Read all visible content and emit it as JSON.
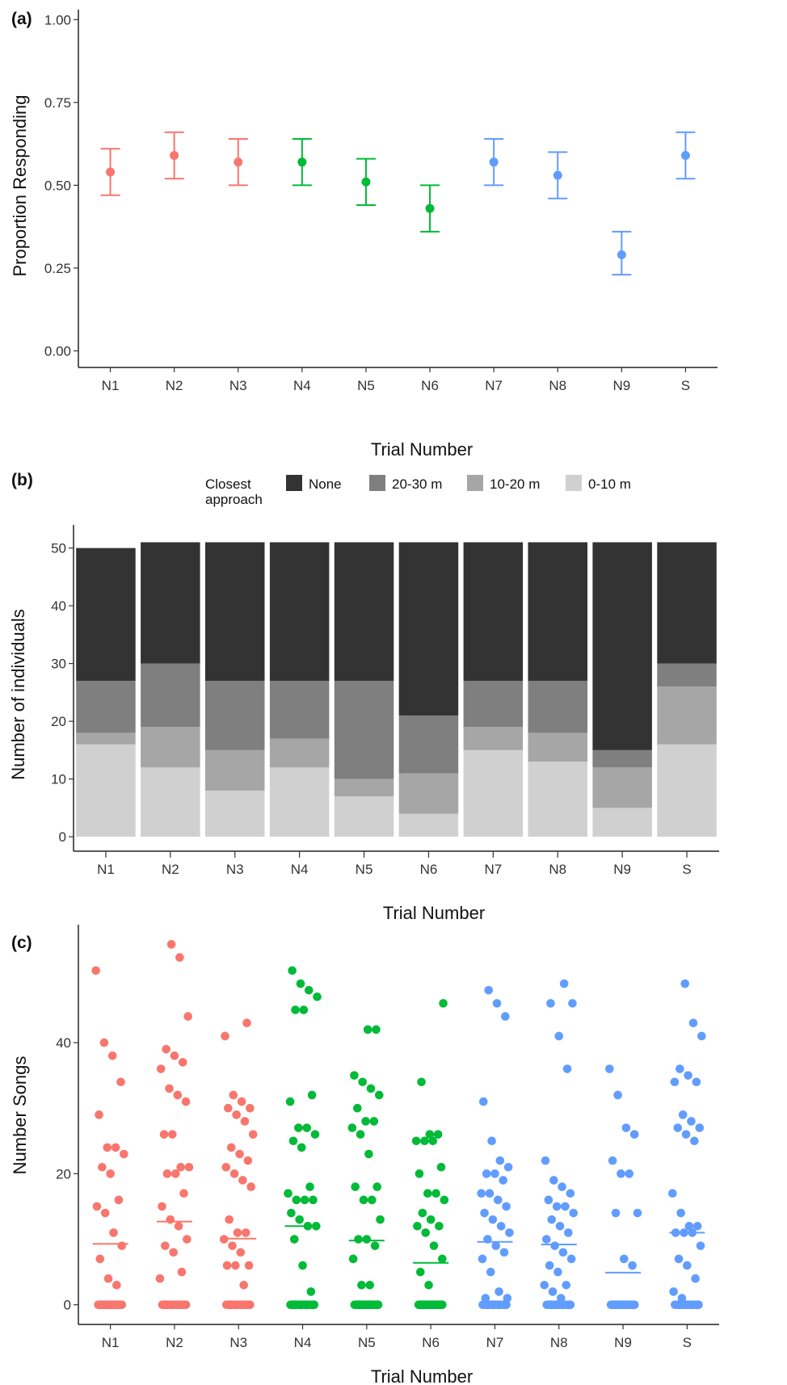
{
  "chart_data": [
    {
      "panel": "(a)",
      "type": "scatter",
      "categories": [
        "N1",
        "N2",
        "N3",
        "N4",
        "N5",
        "N6",
        "N7",
        "N8",
        "N9",
        "S"
      ],
      "values": [
        0.54,
        0.59,
        0.57,
        0.57,
        0.51,
        0.43,
        0.57,
        0.53,
        0.29,
        0.59
      ],
      "lower": [
        0.47,
        0.52,
        0.5,
        0.5,
        0.44,
        0.36,
        0.5,
        0.46,
        0.23,
        0.52
      ],
      "upper": [
        0.61,
        0.66,
        0.64,
        0.64,
        0.58,
        0.5,
        0.64,
        0.6,
        0.36,
        0.66
      ],
      "colors": [
        "#f8766d",
        "#f8766d",
        "#f8766d",
        "#00ba38",
        "#00ba38",
        "#00ba38",
        "#619cff",
        "#619cff",
        "#619cff",
        "#619cff"
      ],
      "xlabel": "Trial Number",
      "ylabel": "Proportion Responding",
      "ylim": [
        0,
        1
      ],
      "yticks": [
        "0.00",
        "0.25",
        "0.50",
        "0.75",
        "1.00"
      ],
      "grid": false
    },
    {
      "panel": "(b)",
      "type": "bar",
      "stacked": true,
      "categories": [
        "N1",
        "N2",
        "N3",
        "N4",
        "N5",
        "N6",
        "N7",
        "N8",
        "N9",
        "S"
      ],
      "legend_title": "Closest\napproach",
      "legend_position": "top",
      "series": [
        {
          "name": "None",
          "color": "#333333",
          "values": [
            23,
            21,
            24,
            24,
            24,
            30,
            24,
            24,
            36,
            21
          ]
        },
        {
          "name": "20-30 m",
          "color": "#7f7f7f",
          "values": [
            9,
            11,
            12,
            10,
            17,
            10,
            8,
            9,
            3,
            4
          ]
        },
        {
          "name": "10-20 m",
          "color": "#a6a6a6",
          "values": [
            2,
            7,
            7,
            5,
            3,
            7,
            4,
            5,
            7,
            10
          ]
        },
        {
          "name": "0-10 m",
          "color": "#d0d0d0",
          "values": [
            16,
            12,
            8,
            12,
            7,
            4,
            15,
            13,
            5,
            16
          ]
        }
      ],
      "xlabel": "Trial Number",
      "ylabel": "Number of individuals",
      "ylim": [
        0,
        52
      ],
      "yticks": [
        "0",
        "10",
        "20",
        "30",
        "40",
        "50"
      ],
      "grid": false
    },
    {
      "panel": "(c)",
      "type": "scatter",
      "jitter": true,
      "categories": [
        "N1",
        "N2",
        "N3",
        "N4",
        "N5",
        "N6",
        "N7",
        "N8",
        "N9",
        "S"
      ],
      "colors": [
        "#f8766d",
        "#f8766d",
        "#f8766d",
        "#00ba38",
        "#00ba38",
        "#00ba38",
        "#619cff",
        "#619cff",
        "#619cff",
        "#619cff"
      ],
      "means": [
        9.3,
        12.7,
        10.1,
        12.0,
        9.8,
        6.4,
        9.6,
        9.2,
        4.9,
        11.0
      ],
      "points": [
        [
          51,
          40,
          38,
          34,
          29,
          24,
          24,
          23,
          21,
          20,
          16,
          15,
          14,
          11,
          9,
          7,
          4,
          3,
          0,
          0,
          0,
          0,
          0,
          0,
          0,
          0,
          0,
          0,
          0,
          0,
          0,
          0,
          0,
          0,
          0,
          0,
          0,
          0,
          0,
          0,
          0,
          0,
          0,
          0,
          0,
          0,
          0,
          0,
          0,
          0
        ],
        [
          55,
          53,
          44,
          39,
          38,
          37,
          36,
          33,
          32,
          31,
          26,
          26,
          21,
          21,
          20,
          20,
          17,
          15,
          13,
          12,
          10,
          9,
          8,
          5,
          4,
          0,
          0,
          0,
          0,
          0,
          0,
          0,
          0,
          0,
          0,
          0,
          0,
          0,
          0,
          0,
          0,
          0,
          0,
          0,
          0,
          0,
          0,
          0,
          0,
          0,
          0
        ],
        [
          43,
          41,
          32,
          31,
          30,
          30,
          29,
          28,
          26,
          24,
          23,
          22,
          21,
          20,
          19,
          18,
          13,
          11,
          11,
          10,
          9,
          8,
          6,
          6,
          6,
          3,
          0,
          0,
          0,
          0,
          0,
          0,
          0,
          0,
          0,
          0,
          0,
          0,
          0,
          0,
          0,
          0,
          0,
          0,
          0,
          0,
          0,
          0,
          0,
          0,
          0
        ],
        [
          51,
          49,
          48,
          47,
          45,
          45,
          32,
          31,
          27,
          27,
          26,
          25,
          24,
          18,
          17,
          16,
          16,
          16,
          14,
          13,
          12,
          12,
          10,
          6,
          2,
          0,
          0,
          0,
          0,
          0,
          0,
          0,
          0,
          0,
          0,
          0,
          0,
          0,
          0,
          0,
          0,
          0,
          0,
          0,
          0,
          0,
          0,
          0,
          0,
          0,
          0
        ],
        [
          42,
          42,
          35,
          34,
          33,
          32,
          30,
          28,
          28,
          27,
          26,
          23,
          18,
          18,
          16,
          16,
          13,
          10,
          10,
          9,
          7,
          3,
          3,
          0,
          0,
          0,
          0,
          0,
          0,
          0,
          0,
          0,
          0,
          0,
          0,
          0,
          0,
          0,
          0,
          0,
          0,
          0,
          0,
          0,
          0,
          0,
          0,
          0,
          0,
          0,
          0
        ],
        [
          46,
          34,
          26,
          26,
          25,
          25,
          25,
          21,
          20,
          17,
          17,
          16,
          14,
          13,
          12,
          12,
          11,
          9,
          7,
          5,
          3,
          0,
          0,
          0,
          0,
          0,
          0,
          0,
          0,
          0,
          0,
          0,
          0,
          0,
          0,
          0,
          0,
          0,
          0,
          0,
          0,
          0,
          0,
          0,
          0,
          0,
          0,
          0,
          0,
          0,
          0
        ],
        [
          48,
          46,
          44,
          31,
          25,
          22,
          21,
          20,
          20,
          19,
          17,
          17,
          16,
          15,
          14,
          13,
          12,
          11,
          10,
          9,
          8,
          7,
          5,
          2,
          1,
          1,
          0,
          0,
          0,
          0,
          0,
          0,
          0,
          0,
          0,
          0,
          0,
          0,
          0,
          0,
          0,
          0,
          0,
          0,
          0,
          0,
          0,
          0,
          0,
          0,
          0
        ],
        [
          49,
          46,
          46,
          41,
          36,
          22,
          19,
          18,
          17,
          16,
          15,
          15,
          14,
          13,
          12,
          11,
          10,
          9,
          8,
          7,
          6,
          5,
          3,
          3,
          2,
          1,
          0,
          0,
          0,
          0,
          0,
          0,
          0,
          0,
          0,
          0,
          0,
          0,
          0,
          0,
          0,
          0,
          0,
          0,
          0,
          0,
          0,
          0,
          0,
          0,
          0
        ],
        [
          36,
          32,
          27,
          26,
          22,
          20,
          20,
          14,
          14,
          7,
          6,
          0,
          0,
          0,
          0,
          0,
          0,
          0,
          0,
          0,
          0,
          0,
          0,
          0,
          0,
          0,
          0,
          0,
          0,
          0,
          0,
          0,
          0,
          0,
          0,
          0,
          0,
          0,
          0,
          0,
          0
        ],
        [
          49,
          43,
          41,
          36,
          35,
          34,
          34,
          29,
          28,
          27,
          27,
          26,
          25,
          17,
          14,
          12,
          12,
          11,
          11,
          11,
          9,
          7,
          6,
          4,
          2,
          1,
          0,
          0,
          0,
          0,
          0,
          0,
          0,
          0,
          0,
          0,
          0,
          0,
          0,
          0,
          0,
          0,
          0,
          0,
          0,
          0,
          0,
          0,
          0,
          0,
          0
        ]
      ],
      "xlabel": "Trial Number",
      "ylabel": "Number Songs",
      "ylim": [
        -3,
        58
      ],
      "yticks": [
        "0",
        "20",
        "40"
      ],
      "grid": false
    }
  ]
}
